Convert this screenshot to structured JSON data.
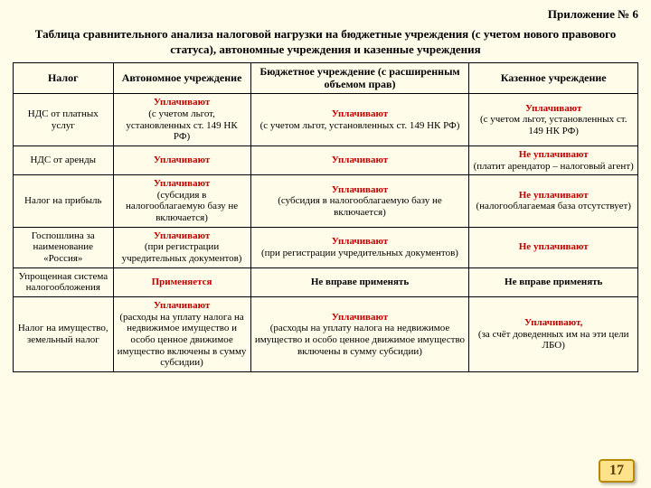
{
  "title": "Приложение № 6",
  "subtitle": "Таблица сравнительного анализа налоговой нагрузки на бюджетные учреждения (с учетом нового правового статуса), автономные учреждения и казенные учреждения",
  "headers": {
    "c1": "Налог",
    "c2": "Автономное учреждение",
    "c3": "Бюджетное учреждение (с расширенным объемом прав)",
    "c4": "Казенное учреждение"
  },
  "rows": {
    "r1": {
      "c1": "НДС от платных услуг",
      "c2a": "Уплачивают",
      "c2b": "(с учетом льгот, установленных ст. 149 НК РФ)",
      "c3a": "Уплачивают",
      "c3b": "(с учетом льгот, установленных ст. 149 НК РФ)",
      "c4a": "Уплачивают",
      "c4b": "(с учетом льгот, установленных ст. 149 НК РФ)"
    },
    "r2": {
      "c1": "НДС от аренды",
      "c2a": "Уплачивают",
      "c3a": "Уплачивают",
      "c4a": "Не уплачивают",
      "c4b": "(платит арендатор – налоговый агент)"
    },
    "r3": {
      "c1": "Налог на прибыль",
      "c2a": "Уплачивают",
      "c2b": "(субсидия в налогооблагаемую базу не включается)",
      "c3a": "Уплачивают",
      "c3b": "(субсидия в налогооблагаемую базу не включается)",
      "c4a": "Не уплачивают",
      "c4b": "(налогооблагаемая база отсутствует)"
    },
    "r4": {
      "c1": "Госпошлина за наименование «Россия»",
      "c2a": "Уплачивают",
      "c2b": "(при регистрации учредительных документов)",
      "c3a": "Уплачивают",
      "c3b": "(при регистрации учредительных документов)",
      "c4a": "Не уплачивают"
    },
    "r5": {
      "c1": "Упрощенная система налогообложения",
      "c2a": "Применяется",
      "c3a": "Не вправе применять",
      "c4a": "Не вправе применять"
    },
    "r6": {
      "c1": "Налог на имущество, земельный налог",
      "c2a": "Уплачивают",
      "c2b": "(расходы на уплату налога на недвижимое имущество и особо ценное движимое имущество включены в сумму субсидии)",
      "c3a": "Уплачивают",
      "c3b": "(расходы на уплату налога на недвижимое имущество и особо ценное движимое имущество включены в сумму субсидии)",
      "c4a": "Уплачивают,",
      "c4b": "(за счёт доведенных им на эти цели ЛБО)"
    }
  },
  "page": "17"
}
